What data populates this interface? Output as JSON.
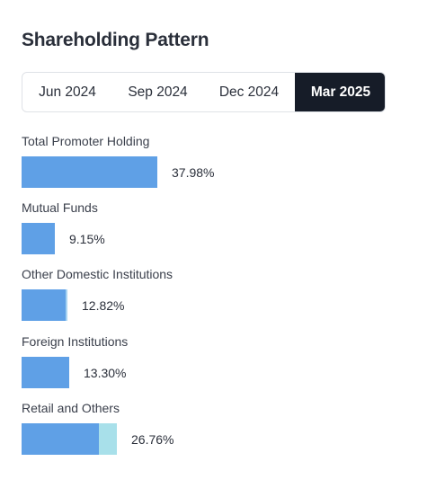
{
  "header": {
    "title": "Shareholding Pattern"
  },
  "tabs": [
    {
      "label": "Jun 2024",
      "active": false
    },
    {
      "label": "Sep 2024",
      "active": false
    },
    {
      "label": "Dec 2024",
      "active": false
    },
    {
      "label": "Mar 2025",
      "active": true
    }
  ],
  "holdings": [
    {
      "label": "Total Promoter Holding",
      "value": 37.98,
      "display": "37.98%"
    },
    {
      "label": "Mutual Funds",
      "value": 9.15,
      "display": "9.15%"
    },
    {
      "label": "Other Domestic Institutions",
      "value": 12.82,
      "display": "12.82%"
    },
    {
      "label": "Foreign Institutions",
      "value": 13.3,
      "display": "13.30%"
    },
    {
      "label": "Retail and Others",
      "value": 26.76,
      "display": "26.76%"
    }
  ],
  "colors": {
    "bar_primary": "#5fa0e6",
    "bar_secondary": "#a8e0ea",
    "active_tab_bg": "#161c28"
  }
}
